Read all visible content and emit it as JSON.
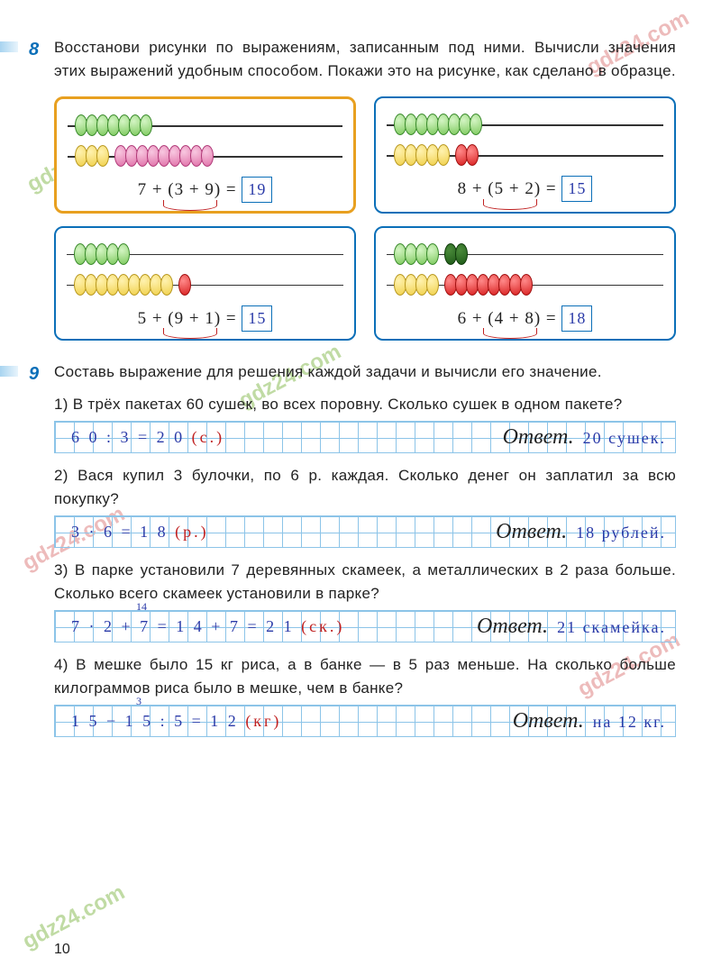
{
  "page_number": "10",
  "task8": {
    "number": "8",
    "text": "Восстанови рисунки по выражениям, записанным под ними. Вычисли значения этих выражений удобным способом. Покажи это на рисунке, как сделано в образце.",
    "panels": [
      {
        "expr": "7 + (3 + 9) =",
        "answer": "19",
        "row1": "g g g g g g g",
        "row2": "y y y gap p p p p p p p p p"
      },
      {
        "expr": "8 + (5 + 2) =",
        "answer": "15",
        "row1": "g g g g g g g g",
        "row2": "y y y y y gap r r"
      },
      {
        "expr": "5 + (9 + 1) =",
        "answer": "15",
        "row1": "g g g g g",
        "row2": "y y y y y y y y y gap r"
      },
      {
        "expr": "6 + (4 + 8) =",
        "answer": "18",
        "row1": "g g g g gap dg dg",
        "row2": "y y y y gap r r r r r r r r"
      }
    ]
  },
  "task9": {
    "number": "9",
    "text": "Составь выражение для решения каждой задачи и вычисли его значение.",
    "subs": [
      {
        "q": "1) В трёх пакетах 60 сушек, во всех поровну. Сколько сушек в одном пакете?",
        "calc": "6 0 : 3 = 2 0",
        "unit": "(с.)",
        "answer": "20 сушек."
      },
      {
        "q": "2) Вася купил 3 булочки, по 6 р. каждая. Сколько денег он заплатил за всю покупку?",
        "calc": "3 · 6 = 1 8",
        "unit": "(р.)",
        "answer": "18 рублей."
      },
      {
        "q": "3) В парке установили 7 деревянных скамеек, а металлических в 2 раза больше. Сколько всего скамеек установили в парке?",
        "calc": "7 · 2 + 7 = 1 4 + 7 = 2 1",
        "unit": "(ск.)",
        "answer": "21 скамейка.",
        "annot": "14"
      },
      {
        "q": "4) В мешке было 15 кг риса, а в банке — в 5 раз меньше. На сколько больше килограммов риса было в мешке, чем в банке?",
        "calc": "1 5 − 1 5 : 5 = 1 2",
        "unit": "(кг)",
        "answer": "на 12 кг.",
        "annot": "3"
      }
    ],
    "answer_label": "Ответ."
  },
  "watermark": "gdz24.com"
}
